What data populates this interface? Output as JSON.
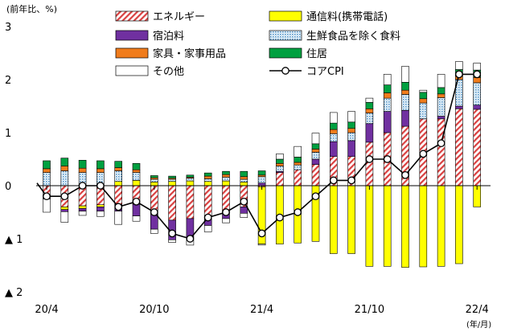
{
  "chart_data": {
    "type": "bar",
    "stacked": true,
    "ylabel": "(前年比、%)",
    "xlabel": "(年/月)",
    "ylim": [
      -2,
      3
    ],
    "yticks": [
      {
        "value": 3,
        "label": "3"
      },
      {
        "value": 2,
        "label": "2"
      },
      {
        "value": 1,
        "label": "1"
      },
      {
        "value": 0,
        "label": "0"
      },
      {
        "value": -1,
        "label": "▲ 1"
      },
      {
        "value": -2,
        "label": "▲ 2"
      }
    ],
    "xticks": [
      {
        "index": 0,
        "label": "20/4"
      },
      {
        "index": 6,
        "label": "20/10"
      },
      {
        "index": 12,
        "label": "21/4"
      },
      {
        "index": 18,
        "label": "21/10"
      },
      {
        "index": 24,
        "label": "22/4"
      }
    ],
    "categories": [
      "20/4",
      "20/5",
      "20/6",
      "20/7",
      "20/8",
      "20/9",
      "20/10",
      "20/11",
      "20/12",
      "21/1",
      "21/2",
      "21/3",
      "21/4",
      "21/5",
      "21/6",
      "21/7",
      "21/8",
      "21/9",
      "21/10",
      "21/11",
      "21/12",
      "22/1",
      "22/2",
      "22/3",
      "22/4"
    ],
    "series": [
      {
        "name": "エネルギー",
        "key": "energy",
        "color": "#d94040",
        "pattern": "hatch",
        "values": [
          -0.18,
          -0.4,
          -0.38,
          -0.36,
          -0.35,
          -0.35,
          -0.5,
          -0.65,
          -0.62,
          -0.6,
          -0.5,
          -0.4,
          -0.02,
          0.25,
          0.3,
          0.4,
          0.55,
          0.55,
          0.82,
          1.0,
          1.12,
          1.26,
          1.26,
          1.45,
          1.44
        ]
      },
      {
        "name": "通信料(携帯電話)",
        "key": "telecom",
        "color": "#ffff00",
        "values": [
          -0.05,
          -0.05,
          -0.05,
          -0.04,
          0.08,
          0.1,
          0.07,
          0.08,
          0.09,
          0.08,
          0.09,
          0.07,
          -1.08,
          -1.1,
          -1.08,
          -1.05,
          -1.28,
          -1.28,
          -1.52,
          -1.52,
          -1.54,
          -1.53,
          -1.52,
          -1.47,
          -0.4
        ]
      },
      {
        "name": "宿泊料",
        "key": "lodging",
        "color": "#7030a0",
        "values": [
          -0.02,
          -0.04,
          -0.05,
          -0.08,
          -0.13,
          -0.22,
          -0.32,
          -0.37,
          -0.35,
          -0.15,
          -0.12,
          -0.12,
          0.05,
          0.02,
          0.0,
          0.1,
          0.28,
          0.3,
          0.35,
          0.4,
          0.3,
          0.0,
          0.05,
          0.05,
          0.08
        ]
      },
      {
        "name": "生鮮食品を除く食料",
        "key": "food",
        "color": "#8ec6e8",
        "pattern": "dots",
        "values": [
          0.25,
          0.28,
          0.25,
          0.25,
          0.2,
          0.15,
          0.05,
          0.04,
          0.05,
          0.05,
          0.07,
          0.05,
          0.12,
          0.1,
          0.09,
          0.13,
          0.15,
          0.15,
          0.2,
          0.25,
          0.3,
          0.3,
          0.35,
          0.5,
          0.42
        ]
      },
      {
        "name": "家具・家事用品",
        "key": "furniture",
        "color": "#f07c1c",
        "values": [
          0.07,
          0.09,
          0.08,
          0.07,
          0.06,
          0.05,
          0.03,
          0.02,
          0.02,
          0.05,
          0.05,
          0.05,
          0.03,
          0.05,
          0.05,
          0.06,
          0.08,
          0.08,
          0.08,
          0.1,
          0.08,
          0.08,
          0.07,
          0.07,
          0.1
        ]
      },
      {
        "name": "住居",
        "key": "housing",
        "color": "#00a040",
        "values": [
          0.15,
          0.15,
          0.15,
          0.15,
          0.12,
          0.12,
          0.04,
          0.04,
          0.04,
          0.06,
          0.06,
          0.1,
          0.08,
          0.08,
          0.1,
          0.1,
          0.12,
          0.12,
          0.12,
          0.15,
          0.15,
          0.12,
          0.12,
          0.12,
          0.14
        ]
      },
      {
        "name": "その他",
        "key": "other",
        "color": "#ffffff",
        "values": [
          -0.25,
          -0.2,
          -0.08,
          -0.1,
          -0.25,
          -0.1,
          -0.08,
          -0.05,
          -0.15,
          -0.12,
          -0.08,
          -0.08,
          -0.02,
          0.1,
          0.2,
          0.2,
          0.2,
          0.2,
          0.08,
          0.2,
          0.3,
          0.04,
          0.25,
          0.15,
          0.13
        ]
      }
    ],
    "line": {
      "name": "コアCPI",
      "key": "core",
      "values": [
        -0.2,
        -0.2,
        0.0,
        0.0,
        -0.4,
        -0.3,
        -0.5,
        -0.9,
        -1.0,
        -0.6,
        -0.5,
        -0.3,
        -0.9,
        -0.6,
        -0.5,
        -0.2,
        0.1,
        0.1,
        0.5,
        0.5,
        0.2,
        0.6,
        0.8,
        2.1,
        2.1
      ]
    },
    "legend": {
      "placement": "top",
      "left_column": [
        "energy",
        "lodging",
        "furniture",
        "other"
      ],
      "right_column": [
        "telecom",
        "food",
        "housing",
        "core"
      ]
    }
  }
}
